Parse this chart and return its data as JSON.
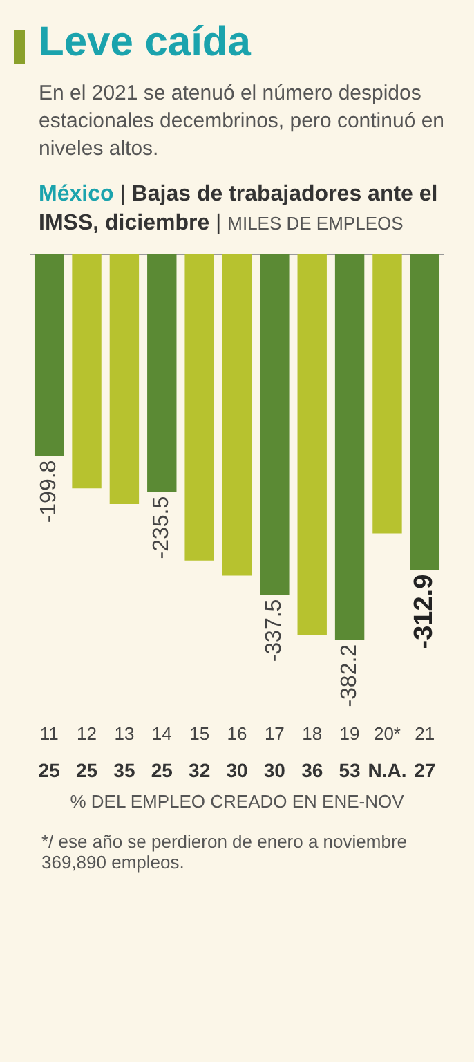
{
  "chart_data": {
    "type": "bar",
    "title": "Leve caída",
    "subtitle": "En el 2021 se atenuó el número despidos estacionales decembrinos, pero continuó en niveles altos.",
    "ylabel": "México | Bajas de trabajadores ante el IMSS, diciembre | MILES DE EMPLEOS",
    "xlabel": "% DEL EMPLEO CREADO EN ENE-NOV",
    "categories": [
      "11",
      "12",
      "13",
      "14",
      "15",
      "16",
      "17",
      "18",
      "19",
      "20*",
      "21"
    ],
    "values": [
      -199.8,
      -231.7,
      -247.4,
      -235.5,
      -303.3,
      -318.2,
      -337.5,
      -377,
      -382.2,
      -276.4,
      -312.9
    ],
    "value_labels": [
      "-199.8",
      null,
      null,
      "-235.5",
      null,
      null,
      "-337.5",
      null,
      "-382.2",
      null,
      "-312.9"
    ],
    "colors": [
      "#5b8a34",
      "#b7c22f",
      "#b7c22f",
      "#5b8a34",
      "#b7c22f",
      "#b7c22f",
      "#5b8a34",
      "#b7c22f",
      "#5b8a34",
      "#b7c22f",
      "#5b8a34"
    ],
    "tick_labels": "x",
    "grid": false,
    "legend": false,
    "annotations": [
      "25",
      "25",
      "35",
      "25",
      "32",
      "30",
      "30",
      "36",
      "53",
      "N.A.",
      "27",
      "*/ ese año se perdieron de enero a noviembre 369,890 empleos."
    ]
  }
}
